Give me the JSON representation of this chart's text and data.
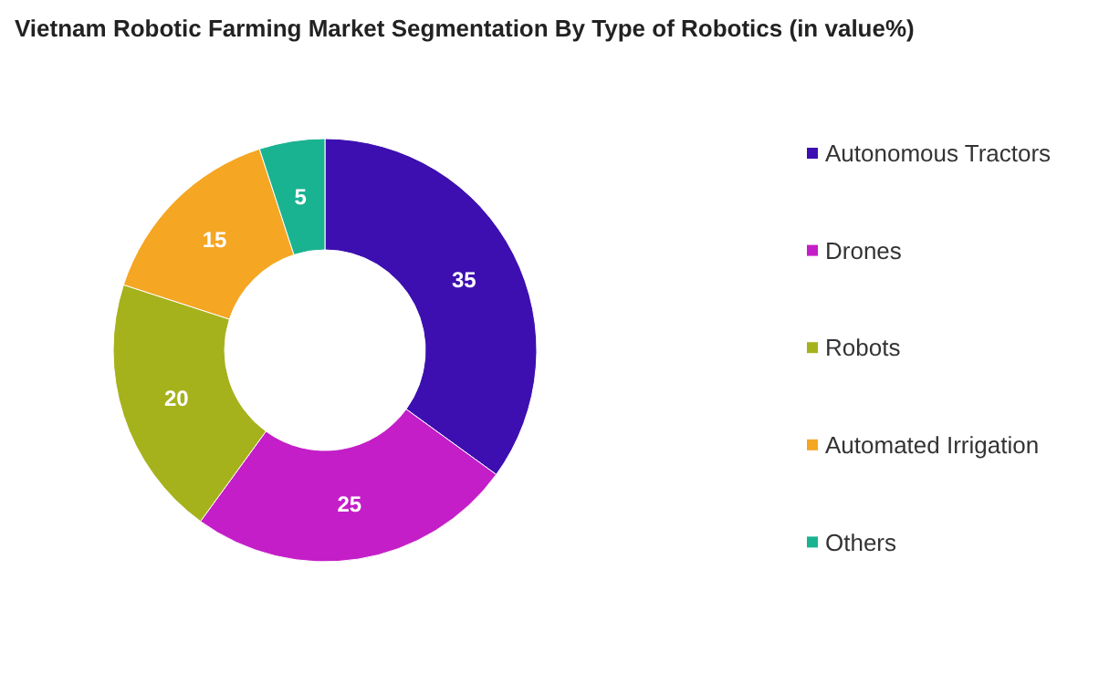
{
  "chart_data": {
    "type": "donut",
    "title": "Vietnam Robotic Farming Market Segmentation By Type of Robotics (in value%)",
    "categories": [
      "Autonomous Tractors",
      "Drones",
      "Robots",
      "Automated Irrigation",
      "Others"
    ],
    "values": [
      35,
      25,
      20,
      15,
      5
    ],
    "colors": [
      "#3d0fb0",
      "#c41ec8",
      "#a6b21c",
      "#f5a623",
      "#1ab391"
    ],
    "data_labels": true,
    "legend": "right"
  }
}
